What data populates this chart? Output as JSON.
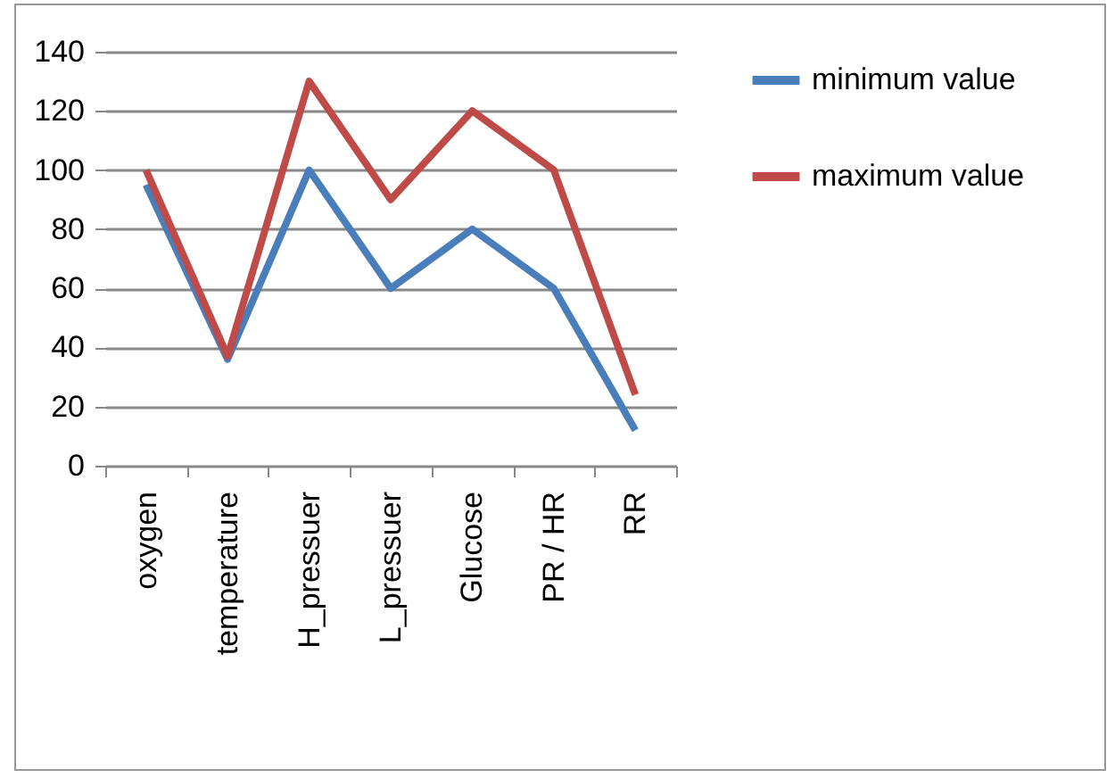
{
  "chart_data": {
    "type": "line",
    "categories": [
      "oxygen",
      "temperature",
      "H_pressuer",
      "L_pressuer",
      "Glucose",
      "PR  / HR",
      "RR"
    ],
    "series": [
      {
        "name": "minimum value",
        "color": "#4a7ebb",
        "values": [
          95,
          36,
          100,
          60,
          80,
          60,
          12
        ]
      },
      {
        "name": "maximum value",
        "color": "#be4b48",
        "values": [
          100,
          37,
          130,
          90,
          120,
          100,
          24
        ]
      }
    ],
    "ylim": [
      0,
      140
    ],
    "yticks": [
      0,
      20,
      40,
      60,
      80,
      100,
      120,
      140
    ],
    "grid": "y",
    "legend": "right",
    "marker": "none",
    "line_style": "solid"
  }
}
